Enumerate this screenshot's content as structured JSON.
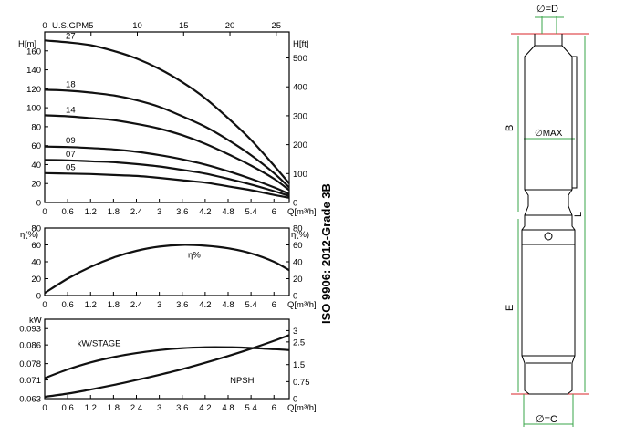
{
  "chart_data": [
    {
      "type": "line",
      "name": "head",
      "top_axis": {
        "label": "U.S.GPM",
        "ticks": [
          "0",
          "5",
          "10",
          "15",
          "20",
          "25"
        ],
        "lim": [
          0,
          26.4
        ]
      },
      "xlabel": "Q[m³/h]",
      "x_ticks": [
        "0",
        "0.6",
        "1.2",
        "1.8",
        "2.4",
        "3",
        "3.6",
        "4.2",
        "4.8",
        "5.4",
        "6"
      ],
      "xlim": [
        0,
        6.4
      ],
      "ylabel_left": "H[m]",
      "y_ticks_left": [
        "0",
        "20",
        "40",
        "60",
        "80",
        "100",
        "120",
        "140",
        "160"
      ],
      "ylim_left": [
        0,
        180
      ],
      "ylabel_right": "H[ft]",
      "y_ticks_right": [
        "0",
        "100",
        "200",
        "300",
        "400",
        "500"
      ],
      "ylim_right": [
        0,
        590
      ],
      "series": [
        {
          "name": "27",
          "x": [
            0,
            0.6,
            1.2,
            1.8,
            2.4,
            3,
            3.6,
            4.2,
            4.8,
            5.4,
            6,
            6.4
          ],
          "y": [
            171,
            169,
            166,
            160,
            152,
            141,
            127,
            110,
            89,
            66,
            39,
            20
          ]
        },
        {
          "name": "18",
          "x": [
            0,
            0.6,
            1.2,
            1.8,
            2.4,
            3,
            3.6,
            4.2,
            4.8,
            5.4,
            6,
            6.4
          ],
          "y": [
            119,
            118,
            116,
            113,
            108,
            101,
            91,
            80,
            66,
            50,
            31,
            16
          ]
        },
        {
          "name": "14",
          "x": [
            0,
            0.6,
            1.2,
            1.8,
            2.4,
            3,
            3.6,
            4.2,
            4.8,
            5.4,
            6,
            6.4
          ],
          "y": [
            92,
            91,
            89,
            87,
            83,
            78,
            71,
            62,
            51,
            39,
            25,
            13
          ]
        },
        {
          "name": "09",
          "x": [
            0,
            0.6,
            1.2,
            1.8,
            2.4,
            3,
            3.6,
            4.2,
            4.8,
            5.4,
            6,
            6.4
          ],
          "y": [
            59,
            58.5,
            57.5,
            56,
            53.5,
            50,
            45.5,
            40,
            33,
            25,
            16,
            9
          ]
        },
        {
          "name": "07",
          "x": [
            0,
            0.6,
            1.2,
            1.8,
            2.4,
            3,
            3.6,
            4.2,
            4.8,
            5.4,
            6,
            6.4
          ],
          "y": [
            45,
            44.5,
            43.5,
            42.5,
            40.5,
            38,
            34.5,
            30.5,
            25,
            19,
            12,
            7
          ]
        },
        {
          "name": "05",
          "x": [
            0,
            0.6,
            1.2,
            1.8,
            2.4,
            3,
            3.6,
            4.2,
            4.8,
            5.4,
            6,
            6.4
          ],
          "y": [
            31,
            30.5,
            30,
            29,
            28,
            26,
            23.5,
            21,
            17,
            13,
            8,
            5
          ]
        }
      ]
    },
    {
      "type": "line",
      "name": "efficiency",
      "ylabel_left": "η(%)",
      "ylabel_right": "η(%)",
      "y_ticks": [
        "0",
        "20",
        "40",
        "60",
        "80"
      ],
      "ylim": [
        0,
        80
      ],
      "xlabel": "Q[m³/h]",
      "x_ticks": [
        "0",
        "0.6",
        "1.2",
        "1.8",
        "2.4",
        "3",
        "3.6",
        "4.2",
        "4.8",
        "5.4",
        "6"
      ],
      "xlim": [
        0,
        6.4
      ],
      "series": [
        {
          "name": "η%",
          "x": [
            0,
            0.6,
            1.2,
            1.8,
            2.4,
            3,
            3.6,
            4.2,
            4.8,
            5.4,
            6,
            6.4
          ],
          "y": [
            3,
            20,
            34,
            45,
            53,
            58,
            60,
            59,
            56,
            50,
            40,
            30
          ]
        }
      ]
    },
    {
      "type": "line",
      "name": "power-npsh",
      "ylabel_left": "kW",
      "y_ticks_left": [
        "0.063",
        "0.071",
        "0.078",
        "0.086",
        "0.093"
      ],
      "ylim_left": [
        0.063,
        0.097
      ],
      "y_ticks_right": [
        "0",
        "0.75",
        "1.5",
        "2.5",
        "3"
      ],
      "ylim_right": [
        0,
        3.5
      ],
      "xlabel": "Q[m³/h]",
      "x_ticks": [
        "0",
        "0.6",
        "1.2",
        "1.8",
        "2.4",
        "3",
        "3.6",
        "4.2",
        "4.8",
        "5.4",
        "6"
      ],
      "xlim": [
        0,
        6.4
      ],
      "series": [
        {
          "name": "kW/STAGE",
          "axis": "left",
          "x": [
            0,
            0.6,
            1.2,
            1.8,
            2.4,
            3,
            3.6,
            4.2,
            4.8,
            5.4,
            6,
            6.4
          ],
          "y": [
            0.0718,
            0.0755,
            0.0785,
            0.0808,
            0.0825,
            0.0838,
            0.0846,
            0.085,
            0.085,
            0.0847,
            0.0842,
            0.0838
          ]
        },
        {
          "name": "NPSH",
          "axis": "right",
          "x": [
            0,
            0.6,
            1.2,
            1.8,
            2.4,
            3,
            3.6,
            4.2,
            4.8,
            5.4,
            6,
            6.4
          ],
          "y": [
            0.08,
            0.22,
            0.4,
            0.6,
            0.82,
            1.05,
            1.3,
            1.58,
            1.88,
            2.2,
            2.55,
            2.8
          ]
        }
      ]
    }
  ],
  "standard_label": "ISO 9906: 2012-Grade 3B",
  "dimension_drawing": {
    "labels": {
      "top": "∅=D",
      "max": "∅MAX",
      "bottom": "∅=C",
      "b": "B",
      "e": "E",
      "l": "L"
    },
    "label_color": "#3aa64a",
    "line_color": "#d8262a"
  }
}
